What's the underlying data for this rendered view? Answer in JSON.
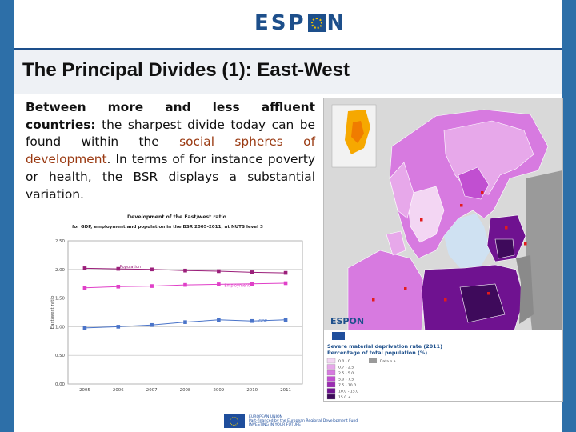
{
  "header": {
    "logo_text_left": "ESP",
    "logo_text_right": "N",
    "title": "The Principal Divides (1): East-West"
  },
  "body": {
    "bold_lead": "Between more and less affluent countries:",
    "text_1": " the sharpest divide today can be found within the ",
    "highlight": "social spheres of development",
    "text_2": ". In terms of for instance poverty or health, the BSR displays a substantial variation."
  },
  "chart_data": {
    "type": "line",
    "title": "Development of the East/west ratio",
    "subtitle": "for GDP, employment and population in the BSR 2005-2011, at NUTS level 3",
    "ylabel": "East/west ratio",
    "xlabel": "",
    "x": [
      "2005",
      "2006",
      "2007",
      "2008",
      "2009",
      "2010",
      "2011"
    ],
    "y_ticks": [
      "0.00",
      "0.50",
      "1.00",
      "1.50",
      "2.00",
      "2.50"
    ],
    "ylim": [
      0,
      2.5
    ],
    "grid": true,
    "series": [
      {
        "name": "Population",
        "color": "#9b1f7a",
        "values": [
          2.02,
          2.01,
          2.0,
          1.98,
          1.97,
          1.95,
          1.94
        ]
      },
      {
        "name": "Employment",
        "color": "#e040c8",
        "values": [
          1.68,
          1.7,
          1.71,
          1.73,
          1.74,
          1.75,
          1.76
        ]
      },
      {
        "name": "GDP",
        "color": "#4a74c9",
        "values": [
          0.98,
          1.0,
          1.03,
          1.08,
          1.12,
          1.1,
          1.12
        ]
      }
    ]
  },
  "map": {
    "legend_title": "Severe material deprivation rate (2011)",
    "legend_subtitle": "Percentage of total population (%)",
    "classes": [
      "0.0 - 0",
      "0.7 - 2.5",
      "2.5 - 5.0",
      "5.0 - 7.5",
      "7.5 - 10.0",
      "10.0 - 15.0",
      "15.0 +"
    ],
    "class_colors": [
      "#f3d6f3",
      "#e7a8ea",
      "#d77ae0",
      "#c14fd1",
      "#9b2bb2",
      "#6f1290",
      "#3e0a5b"
    ],
    "nodata_label": "Data n.a.",
    "nodata_color": "#9a9a9a"
  },
  "footer": {
    "eu_line_1": "EUROPEAN UNION",
    "eu_line_2": "Part-financed by the European Regional Development Fund",
    "eu_line_3": "INVESTING IN YOUR FUTURE"
  }
}
